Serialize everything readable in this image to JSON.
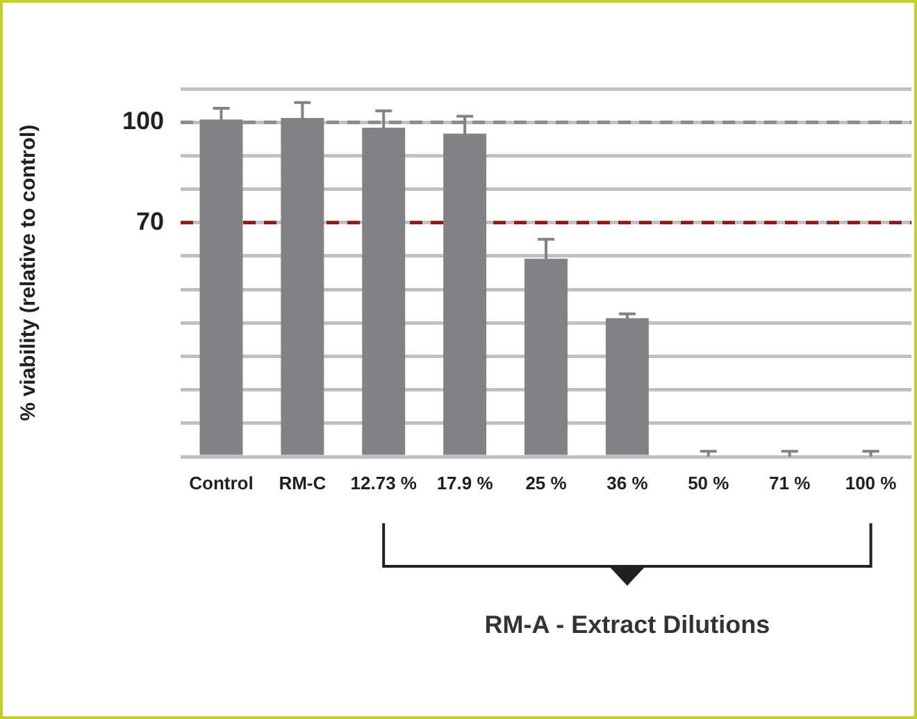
{
  "chart_data": {
    "type": "bar",
    "ylabel": "% viability (relative to control)",
    "categories": [
      "Control",
      "RM-C",
      "12.73 %",
      "17.9 %",
      "25 %",
      "36 %",
      "50 %",
      "71 %",
      "100 %"
    ],
    "values": [
      100.8,
      101.3,
      98.4,
      96.6,
      59.2,
      41.4,
      0.5,
      0.5,
      0.5
    ],
    "errors": [
      3.4,
      4.6,
      5,
      5.2,
      5.8,
      1.3,
      [
        0.5,
        1.1
      ],
      [
        0.5,
        1.1
      ],
      [
        0.5,
        1.1
      ]
    ],
    "color": "#808285",
    "ylim": [
      0,
      110
    ],
    "yticks": [
      {
        "value": 0,
        "label": null
      },
      {
        "value": 10,
        "label": null
      },
      {
        "value": 20,
        "label": null
      },
      {
        "value": 30,
        "label": null
      },
      {
        "value": 40,
        "label": null
      },
      {
        "value": 50,
        "label": null
      },
      {
        "value": 60,
        "label": null
      },
      70,
      {
        "value": 80,
        "label": null
      },
      {
        "value": 90,
        "label": null
      },
      100,
      {
        "value": 110,
        "label": null
      }
    ],
    "grid": "y",
    "ref_lines": [
      {
        "axis": "y",
        "value": 100,
        "color": "#8a8a8e",
        "line_style": "dashed"
      },
      {
        "axis": "y",
        "value": 70,
        "color": "#8b1a1a",
        "line_style": "dashed"
      }
    ],
    "annotations": [
      "RM-A - Extract Dilutions"
    ]
  }
}
